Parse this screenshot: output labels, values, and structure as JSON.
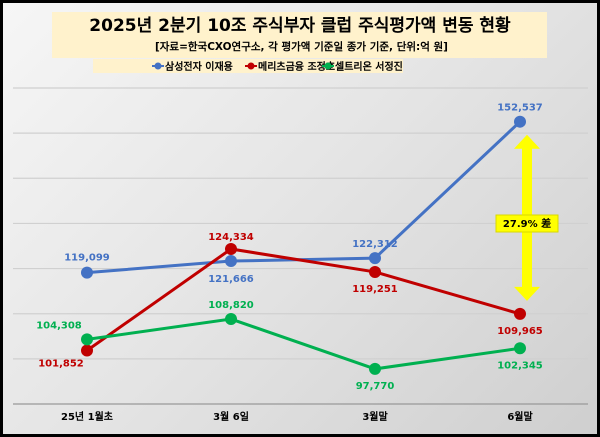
{
  "chart_data": {
    "type": "line",
    "title": "2025년 2분기 10조 주식부자 클럽 주식평가액 변동 현황",
    "subtitle": "[자료=한국CXO연구소, 각 평가액 기준일 종가 기준, 단위:억 원]",
    "categories": [
      "25년 1월초",
      "3월 6일",
      "3월말",
      "6월말"
    ],
    "ylim": [
      90000,
      160000
    ],
    "ytick_step": 10000,
    "grid": true,
    "legend_position": "top",
    "series": [
      {
        "name": "삼성전자 이재용",
        "color": "#4472C4",
        "values": [
          119099,
          121666,
          122312,
          152537
        ],
        "labels": [
          "119,099",
          "121,666",
          "122,312",
          "152,537"
        ]
      },
      {
        "name": "메리츠금융 조정호",
        "color": "#C00000",
        "values": [
          101852,
          124334,
          119251,
          109965
        ],
        "labels": [
          "101,852",
          "124,334",
          "119,251",
          "109,965"
        ]
      },
      {
        "name": "셀트리온 서정진",
        "color": "#00B050",
        "values": [
          104308,
          108820,
          97770,
          102345
        ],
        "labels": [
          "104,308",
          "108,820",
          "97,770",
          "102,345"
        ]
      }
    ],
    "annotation": {
      "text": "27.9% 差",
      "color": "#FFFF00"
    }
  }
}
